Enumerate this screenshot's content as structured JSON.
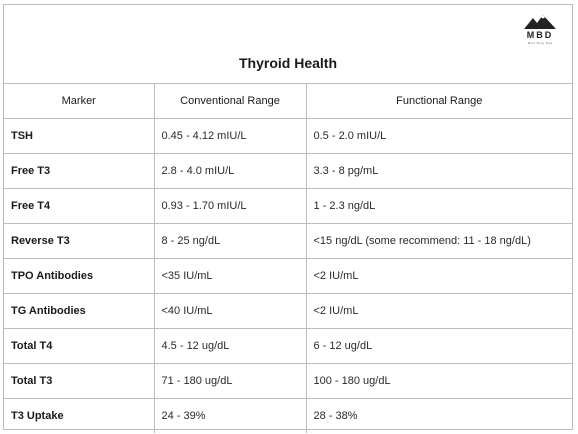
{
  "header": {
    "title": "Thyroid Health",
    "logo": {
      "text": "MBD",
      "subtext": "Mind Body Dad",
      "icon": "mountain-icon"
    }
  },
  "table": {
    "columns": [
      "Marker",
      "Conventional Range",
      "Functional Range"
    ],
    "rows": [
      {
        "marker": "TSH",
        "conventional": "0.45 - 4.12 mIU/L",
        "functional": "0.5 - 2.0 mIU/L"
      },
      {
        "marker": "Free T3",
        "conventional": "2.8 - 4.0 mIU/L",
        "functional": "3.3 - 8 pg/mL"
      },
      {
        "marker": "Free T4",
        "conventional": "0.93 - 1.70 mIU/L",
        "functional": "1 - 2.3 ng/dL"
      },
      {
        "marker": "Reverse T3",
        "conventional": "8 - 25 ng/dL",
        "functional": "<15 ng/dL (some recommend: 11 - 18 ng/dL)"
      },
      {
        "marker": "TPO Antibodies",
        "conventional": "<35 IU/mL",
        "functional": "<2 IU/mL"
      },
      {
        "marker": "TG Antibodies",
        "conventional": "<40 IU/mL",
        "functional": "<2 IU/mL"
      },
      {
        "marker": "Total T4",
        "conventional": "4.5 - 12 ug/dL",
        "functional": "6 - 12 ug/dL"
      },
      {
        "marker": "Total T3",
        "conventional": "71 - 180 ug/dL",
        "functional": "100 - 180 ug/dL"
      },
      {
        "marker": "T3 Uptake",
        "conventional": "24 - 39%",
        "functional": "28 - 38%"
      }
    ]
  }
}
